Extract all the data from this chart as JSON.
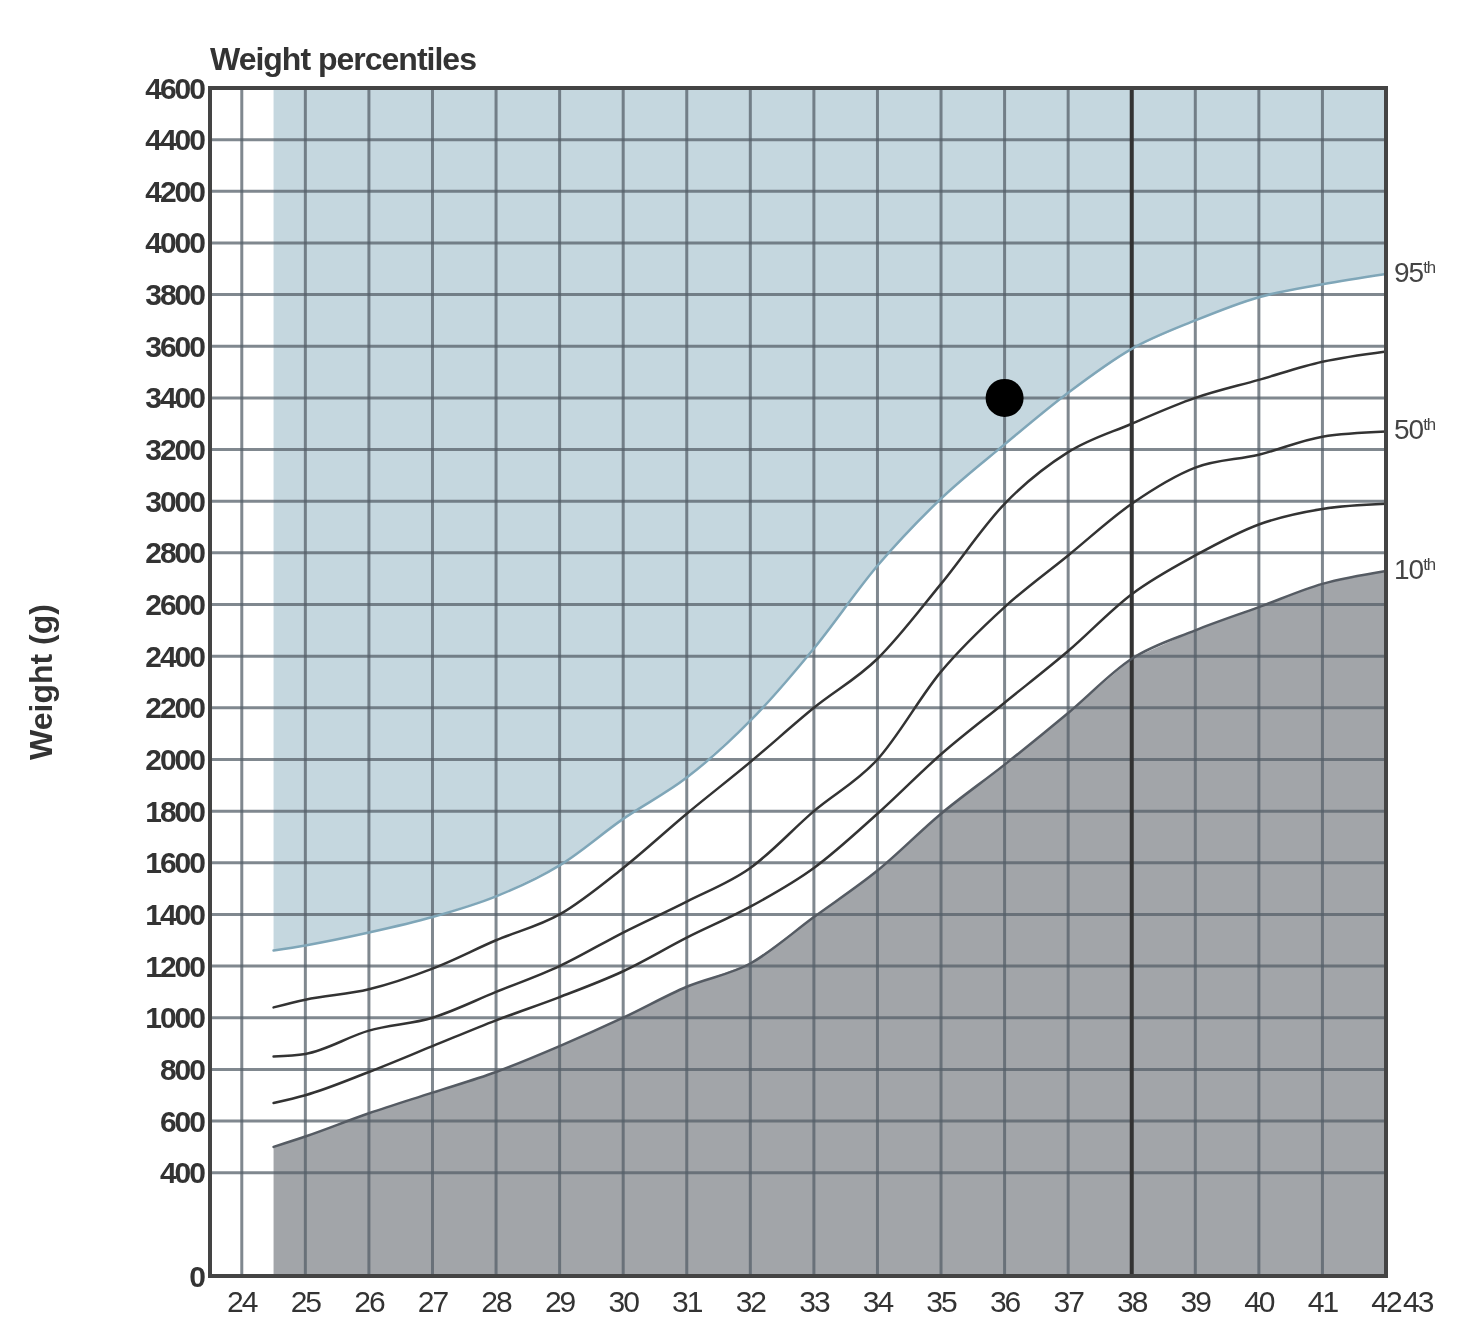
{
  "chart_data": {
    "type": "line",
    "title": "Weight percentiles",
    "ylabel": "Weight (g)",
    "x": [
      24.5,
      25,
      26,
      27,
      28,
      29,
      30,
      31,
      32,
      33,
      34,
      35,
      36,
      37,
      38,
      39,
      40,
      41,
      42
    ],
    "xlim": [
      23.5,
      42
    ],
    "xticks": [
      24,
      25,
      26,
      27,
      28,
      29,
      30,
      31,
      32,
      33,
      34,
      35,
      36,
      37,
      38,
      39,
      40,
      41,
      42
    ],
    "annotations": [
      "43"
    ],
    "ylim": [
      0,
      4600
    ],
    "yticks": [
      0,
      400,
      600,
      800,
      1000,
      1200,
      1400,
      1600,
      1800,
      2000,
      2200,
      2400,
      2600,
      2800,
      3000,
      3200,
      3400,
      3600,
      3800,
      4000,
      4200,
      4400,
      4600
    ],
    "grid": true,
    "marker": "none",
    "line_style": "solid",
    "ref_lines": [
      {
        "axis": "x",
        "value": 38,
        "color": "#333333"
      }
    ],
    "series": [
      {
        "name": "95$^{th}$",
        "color": "#7fa6b8",
        "values": [
          1260,
          1280,
          1330,
          1390,
          1470,
          1590,
          1770,
          1930,
          2150,
          2430,
          2750,
          3010,
          3220,
          3420,
          3590,
          3700,
          3790,
          3840,
          3880
        ],
        "lower": [
          1260,
          1280,
          1330,
          1390,
          1470,
          1590,
          1770,
          1930,
          2150,
          2430,
          2750,
          3010,
          3220,
          3420,
          3590,
          3700,
          3790,
          3840,
          3880
        ],
        "upper": [
          4600,
          4600,
          4600,
          4600,
          4600,
          4600,
          4600,
          4600,
          4600,
          4600,
          4600,
          4600,
          4600,
          4600,
          4600,
          4600,
          4600,
          4600,
          4600
        ]
      },
      {
        "color": "#333333",
        "values": [
          1040,
          1070,
          1110,
          1190,
          1300,
          1400,
          1580,
          1790,
          1990,
          2200,
          2390,
          2680,
          2990,
          3190,
          3300,
          3400,
          3470,
          3540,
          3580
        ]
      },
      {
        "name": "50$^{th}$",
        "color": "#333333",
        "values": [
          850,
          860,
          950,
          1000,
          1100,
          1200,
          1330,
          1450,
          1580,
          1800,
          2000,
          2340,
          2590,
          2790,
          2990,
          3130,
          3180,
          3250,
          3270
        ]
      },
      {
        "color": "#333333",
        "values": [
          670,
          700,
          790,
          890,
          990,
          1080,
          1180,
          1310,
          1430,
          1580,
          1790,
          2020,
          2220,
          2420,
          2640,
          2790,
          2910,
          2970,
          2990
        ]
      },
      {
        "name": "10$^{th}$",
        "color": "#555b63",
        "values": [
          500,
          540,
          630,
          710,
          790,
          890,
          1000,
          1120,
          1210,
          1390,
          1570,
          1790,
          1980,
          2180,
          2390,
          2500,
          2590,
          2680,
          2730
        ],
        "lower": [
          0,
          0,
          0,
          0,
          0,
          0,
          0,
          0,
          0,
          0,
          0,
          0,
          0,
          0,
          0,
          0,
          0,
          0,
          0
        ],
        "upper": [
          500,
          540,
          630,
          710,
          790,
          890,
          1000,
          1120,
          1210,
          1390,
          1570,
          1790,
          1980,
          2180,
          2390,
          2500,
          2590,
          2680,
          2730
        ]
      },
      {
        "type": "scatter",
        "x": [
          36
        ],
        "values": [
          3400
        ],
        "color": "#000000",
        "marker": "circle"
      }
    ]
  }
}
